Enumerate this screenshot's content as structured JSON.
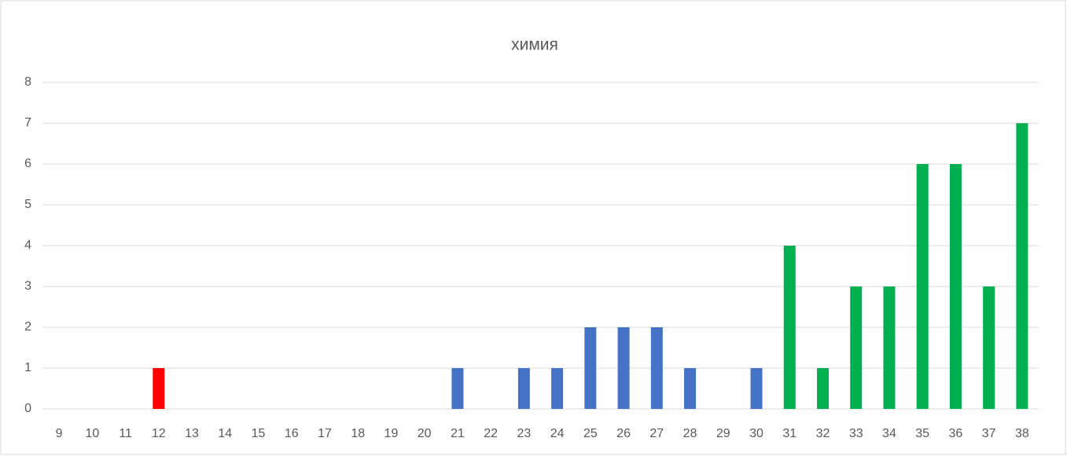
{
  "chart_data": {
    "type": "bar",
    "title": "химия",
    "categories": [
      "9",
      "10",
      "11",
      "12",
      "13",
      "14",
      "15",
      "16",
      "17",
      "18",
      "19",
      "20",
      "21",
      "22",
      "23",
      "24",
      "25",
      "26",
      "27",
      "28",
      "29",
      "30",
      "31",
      "32",
      "33",
      "34",
      "35",
      "36",
      "37",
      "38"
    ],
    "values": [
      0,
      0,
      0,
      1,
      0,
      0,
      0,
      0,
      0,
      0,
      0,
      0,
      1,
      0,
      1,
      1,
      2,
      2,
      2,
      1,
      0,
      1,
      4,
      1,
      3,
      3,
      6,
      6,
      3,
      7
    ],
    "colors": [
      "#ff0000",
      "#ff0000",
      "#ff0000",
      "#ff0000",
      "#4472c4",
      "#4472c4",
      "#4472c4",
      "#4472c4",
      "#4472c4",
      "#4472c4",
      "#4472c4",
      "#4472c4",
      "#4472c4",
      "#4472c4",
      "#4472c4",
      "#4472c4",
      "#4472c4",
      "#4472c4",
      "#4472c4",
      "#4472c4",
      "#4472c4",
      "#4472c4",
      "#00b050",
      "#00b050",
      "#00b050",
      "#00b050",
      "#00b050",
      "#00b050",
      "#00b050",
      "#00b050"
    ],
    "ylim": [
      0,
      8
    ],
    "yticks": [
      0,
      1,
      2,
      3,
      4,
      5,
      6,
      7,
      8
    ],
    "grid": true
  }
}
